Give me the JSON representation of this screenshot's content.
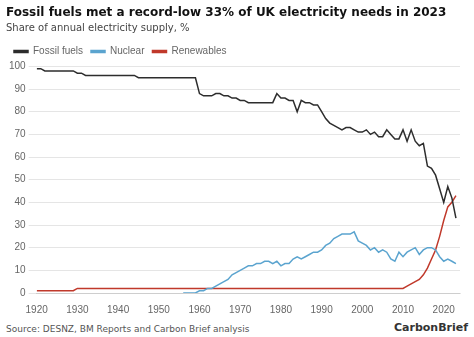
{
  "chart_data": {
    "type": "line",
    "title": "Fossil fuels met a record-low 33% of UK electricity needs in 2023",
    "subtitle": "Share of annual electricity supply, %",
    "annotations": [
      "Source: DESNZ, BM Reports and Carbon Brief analysis",
      "CarbonBrief"
    ],
    "xlim": [
      1920,
      2024
    ],
    "xticks": [
      1920,
      1930,
      1940,
      1950,
      1960,
      1970,
      1980,
      1990,
      2000,
      2010,
      2020
    ],
    "ylim": [
      0,
      100
    ],
    "yticks": [
      0,
      10,
      20,
      30,
      40,
      50,
      60,
      70,
      80,
      90,
      100
    ],
    "grid": true,
    "legend": "top",
    "series": [
      {
        "name": "Fossil fuels",
        "color": "#2d2d2d",
        "x": [
          1920,
          1921,
          1922,
          1923,
          1924,
          1925,
          1926,
          1927,
          1928,
          1929,
          1930,
          1931,
          1932,
          1933,
          1934,
          1935,
          1936,
          1937,
          1938,
          1939,
          1940,
          1941,
          1942,
          1943,
          1944,
          1945,
          1946,
          1947,
          1948,
          1949,
          1950,
          1951,
          1952,
          1953,
          1954,
          1955,
          1956,
          1957,
          1958,
          1959,
          1960,
          1961,
          1962,
          1963,
          1964,
          1965,
          1966,
          1967,
          1968,
          1969,
          1970,
          1971,
          1972,
          1973,
          1974,
          1975,
          1976,
          1977,
          1978,
          1979,
          1980,
          1981,
          1982,
          1983,
          1984,
          1985,
          1986,
          1987,
          1988,
          1989,
          1990,
          1991,
          1992,
          1993,
          1994,
          1995,
          1996,
          1997,
          1998,
          1999,
          2000,
          2001,
          2002,
          2003,
          2004,
          2005,
          2006,
          2007,
          2008,
          2009,
          2010,
          2011,
          2012,
          2013,
          2014,
          2015,
          2016,
          2017,
          2018,
          2019,
          2020,
          2021,
          2022,
          2023
        ],
        "values": [
          99,
          99,
          98,
          98,
          98,
          98,
          98,
          98,
          98,
          98,
          97,
          97,
          96,
          96,
          96,
          96,
          96,
          96,
          96,
          96,
          96,
          96,
          96,
          96,
          96,
          95,
          95,
          95,
          95,
          95,
          95,
          95,
          95,
          95,
          95,
          95,
          95,
          95,
          95,
          95,
          88,
          87,
          87,
          87,
          88,
          88,
          87,
          87,
          86,
          86,
          85,
          85,
          84,
          84,
          84,
          84,
          84,
          84,
          84,
          88,
          86,
          86,
          85,
          85,
          80,
          85,
          84,
          84,
          83,
          83,
          80,
          77,
          75,
          74,
          73,
          72,
          73,
          73,
          72,
          71,
          71,
          72,
          70,
          71,
          69,
          69,
          72,
          70,
          68,
          68,
          72,
          67,
          72,
          67,
          65,
          66,
          56,
          55,
          52,
          46,
          40,
          47,
          42,
          33
        ]
      },
      {
        "name": "Nuclear",
        "color": "#5ba4cf",
        "x": [
          1956,
          1957,
          1958,
          1959,
          1960,
          1961,
          1962,
          1963,
          1964,
          1965,
          1966,
          1967,
          1968,
          1969,
          1970,
          1971,
          1972,
          1973,
          1974,
          1975,
          1976,
          1977,
          1978,
          1979,
          1980,
          1981,
          1982,
          1983,
          1984,
          1985,
          1986,
          1987,
          1988,
          1989,
          1990,
          1991,
          1992,
          1993,
          1994,
          1995,
          1996,
          1997,
          1998,
          1999,
          2000,
          2001,
          2002,
          2003,
          2004,
          2005,
          2006,
          2007,
          2008,
          2009,
          2010,
          2011,
          2012,
          2013,
          2014,
          2015,
          2016,
          2017,
          2018,
          2019,
          2020,
          2021,
          2022,
          2023
        ],
        "values": [
          0,
          0,
          0,
          0,
          1,
          1,
          2,
          2,
          3,
          4,
          5,
          6,
          8,
          9,
          10,
          11,
          12,
          12,
          13,
          13,
          14,
          14,
          13,
          14,
          12,
          13,
          13,
          15,
          16,
          15,
          16,
          17,
          18,
          18,
          19,
          21,
          22,
          24,
          25,
          26,
          26,
          26,
          27,
          23,
          22,
          21,
          19,
          20,
          18,
          19,
          18,
          15,
          14,
          18,
          16,
          18,
          19,
          20,
          17,
          19,
          20,
          20,
          19,
          16,
          14,
          15,
          14,
          13
        ]
      },
      {
        "name": "Renewables",
        "color": "#c0392b",
        "x": [
          1920,
          1921,
          1922,
          1923,
          1924,
          1925,
          1926,
          1927,
          1928,
          1929,
          1930,
          1931,
          1932,
          1933,
          1934,
          1935,
          1936,
          1937,
          1938,
          1939,
          1940,
          1941,
          1942,
          1943,
          1944,
          1945,
          1946,
          1947,
          1948,
          1949,
          1950,
          1951,
          1952,
          1953,
          1954,
          1955,
          1956,
          1957,
          1958,
          1959,
          1960,
          1961,
          1962,
          1963,
          1964,
          1965,
          1966,
          1967,
          1968,
          1969,
          1970,
          1971,
          1972,
          1973,
          1974,
          1975,
          1976,
          1977,
          1978,
          1979,
          1980,
          1981,
          1982,
          1983,
          1984,
          1985,
          1986,
          1987,
          1988,
          1989,
          1990,
          1991,
          1992,
          1993,
          1994,
          1995,
          1996,
          1997,
          1998,
          1999,
          2000,
          2001,
          2002,
          2003,
          2004,
          2005,
          2006,
          2007,
          2008,
          2009,
          2010,
          2011,
          2012,
          2013,
          2014,
          2015,
          2016,
          2017,
          2018,
          2019,
          2020,
          2021,
          2022,
          2023
        ],
        "values": [
          1,
          1,
          1,
          1,
          1,
          1,
          1,
          1,
          1,
          1,
          2,
          2,
          2,
          2,
          2,
          2,
          2,
          2,
          2,
          2,
          2,
          2,
          2,
          2,
          2,
          2,
          2,
          2,
          2,
          2,
          2,
          2,
          2,
          2,
          2,
          2,
          2,
          2,
          2,
          2,
          2,
          2,
          2,
          2,
          2,
          2,
          2,
          2,
          2,
          2,
          2,
          2,
          2,
          2,
          2,
          2,
          2,
          2,
          2,
          2,
          2,
          2,
          2,
          2,
          2,
          2,
          2,
          2,
          2,
          2,
          2,
          2,
          2,
          2,
          2,
          2,
          2,
          2,
          2,
          2,
          2,
          2,
          2,
          2,
          2,
          2,
          2,
          2,
          2,
          2,
          2,
          3,
          4,
          5,
          6,
          8,
          11,
          15,
          19,
          25,
          32,
          38,
          40,
          43
        ]
      }
    ]
  }
}
